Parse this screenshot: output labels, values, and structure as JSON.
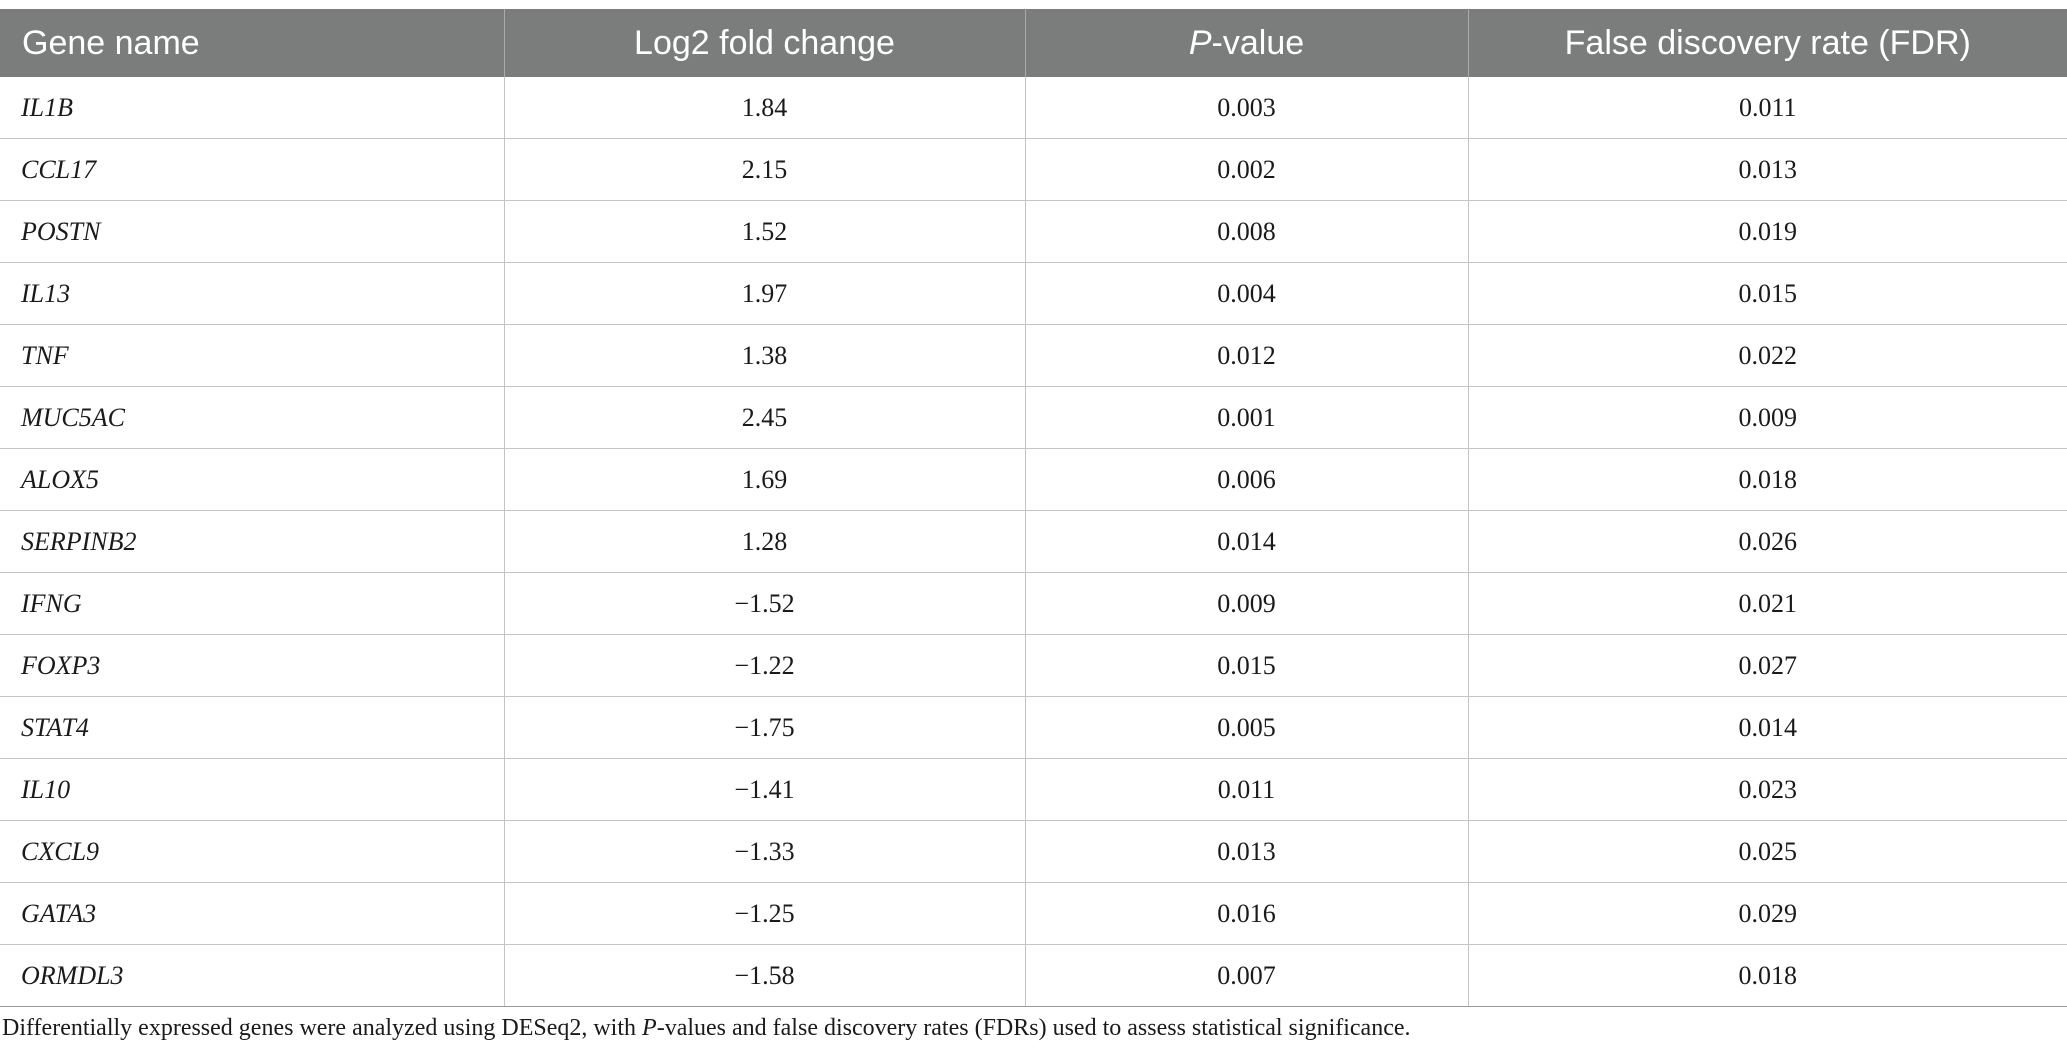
{
  "table": {
    "headers": {
      "gene_name": "Gene name",
      "log2_fold_change": "Log2 fold change",
      "p_value_italic": "P",
      "p_value_rest": "-value",
      "fdr": "False discovery rate (FDR)"
    },
    "rows": [
      {
        "gene": "IL1B",
        "log2fc": "1.84",
        "p": "0.003",
        "fdr": "0.011"
      },
      {
        "gene": "CCL17",
        "log2fc": "2.15",
        "p": "0.002",
        "fdr": "0.013"
      },
      {
        "gene": "POSTN",
        "log2fc": "1.52",
        "p": "0.008",
        "fdr": "0.019"
      },
      {
        "gene": "IL13",
        "log2fc": "1.97",
        "p": "0.004",
        "fdr": "0.015"
      },
      {
        "gene": "TNF",
        "log2fc": "1.38",
        "p": "0.012",
        "fdr": "0.022"
      },
      {
        "gene": "MUC5AC",
        "log2fc": "2.45",
        "p": "0.001",
        "fdr": "0.009"
      },
      {
        "gene": "ALOX5",
        "log2fc": "1.69",
        "p": "0.006",
        "fdr": "0.018"
      },
      {
        "gene": "SERPINB2",
        "log2fc": "1.28",
        "p": "0.014",
        "fdr": "0.026"
      },
      {
        "gene": "IFNG",
        "log2fc": "−1.52",
        "p": "0.009",
        "fdr": "0.021"
      },
      {
        "gene": "FOXP3",
        "log2fc": "−1.22",
        "p": "0.015",
        "fdr": "0.027"
      },
      {
        "gene": "STAT4",
        "log2fc": "−1.75",
        "p": "0.005",
        "fdr": "0.014"
      },
      {
        "gene": "IL10",
        "log2fc": "−1.41",
        "p": "0.011",
        "fdr": "0.023"
      },
      {
        "gene": "CXCL9",
        "log2fc": "−1.33",
        "p": "0.013",
        "fdr": "0.025"
      },
      {
        "gene": "GATA3",
        "log2fc": "−1.25",
        "p": "0.016",
        "fdr": "0.029"
      },
      {
        "gene": "ORMDL3",
        "log2fc": "−1.58",
        "p": "0.007",
        "fdr": "0.018"
      }
    ]
  },
  "footnote": {
    "part1": "Differentially expressed genes were analyzed using DESeq2, with ",
    "italic": "P",
    "part2": "-values and false discovery rates (FDRs) used to assess statistical significance."
  },
  "colors": {
    "header_background": "#7b7d7c",
    "header_text": "#ffffff",
    "grid_line": "#c4c4c4"
  }
}
